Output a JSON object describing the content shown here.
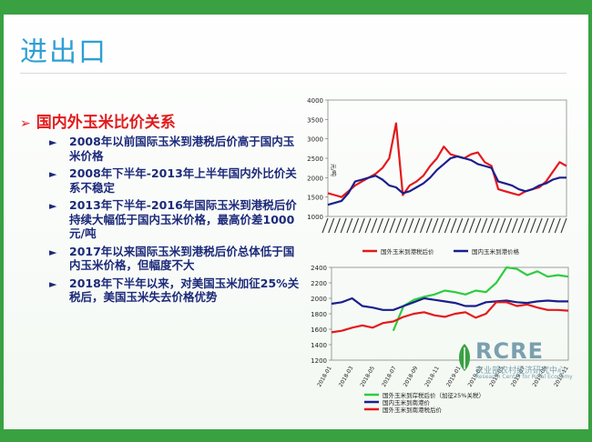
{
  "slide": {
    "title": "进出口",
    "heading": "国内外玉米比价关系",
    "bullets": [
      "2008年以前国际玉米到港税后价高于国内玉米价格",
      "2008年下半年-2013年上半年国内外比价关系不稳定",
      "2013年下半年-2016年国际玉米到港税后价持续大幅低于国内玉米价格，最高价差1000元/吨",
      "2017年以来国际玉米到港税后价总体低于国内玉米价格，但幅度不大",
      "2018年下半年以来，对美国玉米加征25%关税后，美国玉米失去价格优势"
    ]
  },
  "logo": {
    "rcre": "RCRE",
    "chinese": "农业部农村经济研究中心",
    "english": "Research Center for Rural Economy"
  },
  "colors": {
    "frame": "#3aa142",
    "title": "#2f9fd3",
    "heading": "#e31a1c",
    "text": "#1c2a7a"
  },
  "chart_data": [
    {
      "type": "line",
      "ylabel": "元/吨",
      "ylim": [
        1000,
        4000
      ],
      "y_ticks": [
        "1000",
        "1500",
        "2000",
        "2500",
        "3000",
        "3500",
        "4000"
      ],
      "series": [
        {
          "name": "国外玉米到港税后价",
          "color": "#e31a1c",
          "values": [
            1600,
            1550,
            1500,
            1650,
            1800,
            1900,
            2000,
            2100,
            2250,
            2500,
            3400,
            1550,
            1800,
            1900,
            2050,
            2300,
            2500,
            2800,
            2600,
            2550,
            2500,
            2600,
            2650,
            2400,
            2300,
            1700,
            1650,
            1600,
            1550,
            1650,
            1700,
            1750,
            1900,
            2150,
            2400,
            2300
          ]
        },
        {
          "name": "国内玉米到港价格",
          "color": "#1a1f8c",
          "values": [
            1300,
            1350,
            1400,
            1600,
            1900,
            1950,
            2000,
            2050,
            1950,
            1800,
            1750,
            1600,
            1650,
            1750,
            1850,
            2000,
            2200,
            2350,
            2500,
            2550,
            2500,
            2450,
            2350,
            2300,
            2250,
            1900,
            1850,
            1800,
            1700,
            1650,
            1700,
            1800,
            1850,
            1950,
            2000,
            2000
          ]
        }
      ]
    },
    {
      "type": "line",
      "ylim": [
        1200,
        2400
      ],
      "y_ticks": [
        "1200",
        "1400",
        "1600",
        "1800",
        "2000",
        "2200",
        "2400"
      ],
      "x_ticks": [
        "2018-01",
        "2018-03",
        "2018-05",
        "2018-07",
        "2018-09",
        "2018-11",
        "2019-01",
        "2019-03",
        "2019-05",
        "2019-07",
        "2019-09",
        "2019-11"
      ],
      "series": [
        {
          "name": "国外玉米到岸税后价（加征25%关税）",
          "color": "#2ecc40",
          "values": [
            null,
            null,
            null,
            null,
            null,
            null,
            1580,
            1900,
            1980,
            2020,
            2050,
            2100,
            2080,
            2050,
            2100,
            2080,
            2200,
            2400,
            2380,
            2300,
            2350,
            2280,
            2300,
            2280
          ]
        },
        {
          "name": "国内玉米到南港价",
          "color": "#1a1f8c",
          "values": [
            1930,
            1950,
            2000,
            1900,
            1880,
            1850,
            1850,
            1900,
            1950,
            2000,
            1980,
            1960,
            1940,
            1900,
            1900,
            1950,
            1960,
            1970,
            1950,
            1940,
            1960,
            1970,
            1960,
            1960
          ]
        },
        {
          "name": "国外玉米到南港税后价",
          "color": "#e31a1c",
          "values": [
            1560,
            1580,
            1620,
            1650,
            1620,
            1680,
            1700,
            1760,
            1800,
            1820,
            1780,
            1760,
            1800,
            1820,
            1750,
            1800,
            1950,
            1950,
            1900,
            1920,
            1880,
            1850,
            1850,
            1840
          ]
        }
      ]
    }
  ]
}
